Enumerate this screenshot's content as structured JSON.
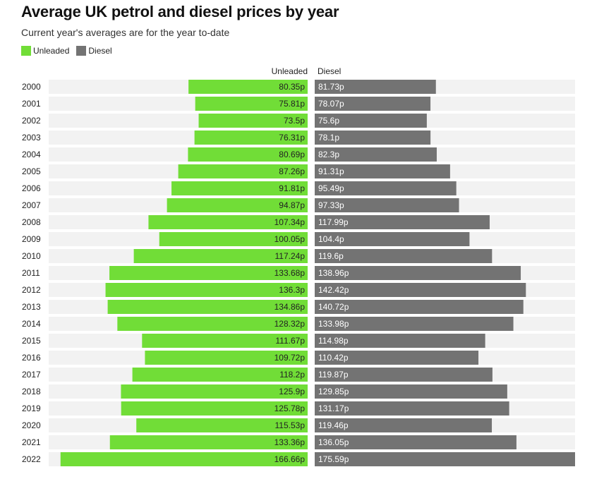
{
  "title": "Average UK petrol and diesel prices by year",
  "subtitle": "Current year's averages are for the year to-date",
  "legend": [
    {
      "name": "Unleaded",
      "color": "#71dd37"
    },
    {
      "name": "Diesel",
      "color": "#737373"
    }
  ],
  "chart_data": {
    "type": "bar",
    "orientation": "horizontal-butterfly",
    "categories": [
      "2000",
      "2001",
      "2002",
      "2003",
      "2004",
      "2005",
      "2006",
      "2007",
      "2008",
      "2009",
      "2010",
      "2011",
      "2012",
      "2013",
      "2014",
      "2015",
      "2016",
      "2017",
      "2018",
      "2019",
      "2020",
      "2021",
      "2022"
    ],
    "series": [
      {
        "name": "Unleaded",
        "color": "#71dd37",
        "values": [
          80.35,
          75.81,
          73.5,
          76.31,
          80.69,
          87.26,
          91.81,
          94.87,
          107.34,
          100.05,
          117.24,
          133.68,
          136.3,
          134.86,
          128.32,
          111.67,
          109.72,
          118.2,
          125.9,
          125.78,
          115.53,
          133.36,
          166.66
        ],
        "labels": [
          "80.35p",
          "75.81p",
          "73.5p",
          "76.31p",
          "80.69p",
          "87.26p",
          "91.81p",
          "94.87p",
          "107.34p",
          "100.05p",
          "117.24p",
          "133.68p",
          "136.3p",
          "134.86p",
          "128.32p",
          "111.67p",
          "109.72p",
          "118.2p",
          "125.9p",
          "125.78p",
          "115.53p",
          "133.36p",
          "166.66p"
        ]
      },
      {
        "name": "Diesel",
        "color": "#737373",
        "values": [
          81.73,
          78.07,
          75.6,
          78.1,
          82.3,
          91.31,
          95.49,
          97.33,
          117.99,
          104.4,
          119.6,
          138.96,
          142.42,
          140.72,
          133.98,
          114.98,
          110.42,
          119.87,
          129.85,
          131.17,
          119.46,
          136.05,
          175.59
        ],
        "labels": [
          "81.73p",
          "78.07p",
          "75.6p",
          "78.1p",
          "82.3p",
          "91.31p",
          "95.49p",
          "97.33p",
          "117.99p",
          "104.4p",
          "119.6p",
          "138.96p",
          "142.42p",
          "140.72p",
          "133.98p",
          "114.98p",
          "110.42p",
          "119.87p",
          "129.85p",
          "131.17p",
          "119.46p",
          "136.05p",
          "175.59p"
        ]
      }
    ],
    "column_headers": [
      "Unleaded",
      "Diesel"
    ],
    "background_track_color": "#f2f2f2"
  }
}
